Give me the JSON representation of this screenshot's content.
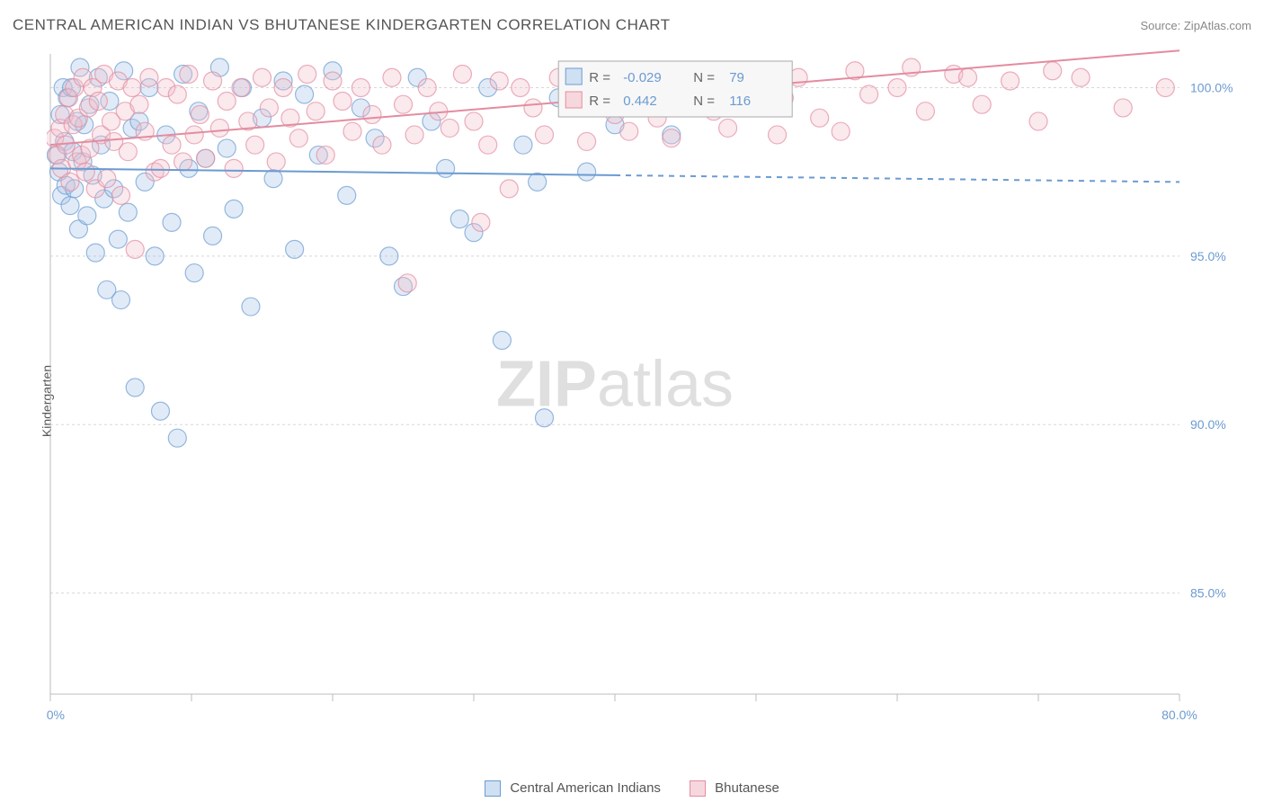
{
  "title": "CENTRAL AMERICAN INDIAN VS BHUTANESE KINDERGARTEN CORRELATION CHART",
  "source": {
    "prefix": "Source: ",
    "name": "ZipAtlas.com"
  },
  "y_axis": {
    "title": "Kindergarten"
  },
  "watermark": {
    "boldpart": "ZIP",
    "rest": "atlas"
  },
  "chart": {
    "type": "scatter",
    "background_color": "#ffffff",
    "grid_color": "#d8d8d8",
    "axis_line_color": "#bcbcbc",
    "xlim": [
      0,
      80
    ],
    "ylim": [
      82,
      101
    ],
    "y_gridlines": [
      85,
      90,
      95,
      100
    ],
    "y_tick_labels": [
      "85.0%",
      "90.0%",
      "95.0%",
      "100.0%"
    ],
    "x_ticks": [
      0,
      10,
      20,
      30,
      40,
      50,
      60,
      70,
      80
    ],
    "x_tick_labels": [
      "0.0%",
      "",
      "",
      "",
      "",
      "",
      "",
      "",
      "80.0%"
    ],
    "marker_radius": 10,
    "marker_fill_opacity": 0.35,
    "marker_stroke_opacity": 0.7,
    "marker_stroke_width": 1.2,
    "trend_line_width": 2,
    "series": [
      {
        "key": "cai",
        "label": "Central American Indians",
        "color": "#6b9bd1",
        "fill": "#a9c7e8",
        "swatch_fill": "#cfe0f2",
        "swatch_border": "#6b9bd1",
        "R": "-0.029",
        "N": "79",
        "trend": {
          "x1": 0,
          "y1": 97.6,
          "x2": 40,
          "y2": 97.4,
          "ext_x2": 80,
          "ext_y2": 97.2,
          "dashed_ext": true
        },
        "points": [
          [
            0.4,
            98.0
          ],
          [
            0.6,
            97.5
          ],
          [
            0.7,
            99.2
          ],
          [
            0.8,
            96.8
          ],
          [
            0.9,
            100.0
          ],
          [
            1.0,
            98.4
          ],
          [
            1.1,
            97.1
          ],
          [
            1.2,
            99.7
          ],
          [
            1.4,
            96.5
          ],
          [
            1.5,
            100.0
          ],
          [
            1.6,
            98.1
          ],
          [
            1.7,
            97.0
          ],
          [
            1.9,
            99.0
          ],
          [
            2.0,
            95.8
          ],
          [
            2.1,
            100.6
          ],
          [
            2.3,
            97.8
          ],
          [
            2.4,
            98.9
          ],
          [
            2.6,
            96.2
          ],
          [
            2.8,
            99.5
          ],
          [
            3.0,
            97.4
          ],
          [
            3.2,
            95.1
          ],
          [
            3.4,
            100.3
          ],
          [
            3.6,
            98.3
          ],
          [
            3.8,
            96.7
          ],
          [
            4.0,
            94.0
          ],
          [
            4.2,
            99.6
          ],
          [
            4.5,
            97.0
          ],
          [
            4.8,
            95.5
          ],
          [
            5.0,
            93.7
          ],
          [
            5.2,
            100.5
          ],
          [
            5.5,
            96.3
          ],
          [
            5.8,
            98.8
          ],
          [
            6.0,
            91.1
          ],
          [
            6.3,
            99.0
          ],
          [
            6.7,
            97.2
          ],
          [
            7.0,
            100.0
          ],
          [
            7.4,
            95.0
          ],
          [
            7.8,
            90.4
          ],
          [
            8.2,
            98.6
          ],
          [
            8.6,
            96.0
          ],
          [
            9.0,
            89.6
          ],
          [
            9.4,
            100.4
          ],
          [
            9.8,
            97.6
          ],
          [
            10.2,
            94.5
          ],
          [
            10.5,
            99.3
          ],
          [
            11.0,
            97.9
          ],
          [
            11.5,
            95.6
          ],
          [
            12.0,
            100.6
          ],
          [
            12.5,
            98.2
          ],
          [
            13.0,
            96.4
          ],
          [
            13.6,
            100.0
          ],
          [
            14.2,
            93.5
          ],
          [
            15.0,
            99.1
          ],
          [
            15.8,
            97.3
          ],
          [
            16.5,
            100.2
          ],
          [
            17.3,
            95.2
          ],
          [
            18.0,
            99.8
          ],
          [
            19.0,
            98.0
          ],
          [
            20.0,
            100.5
          ],
          [
            21.0,
            96.8
          ],
          [
            22.0,
            99.4
          ],
          [
            23.0,
            98.5
          ],
          [
            24.0,
            95.0
          ],
          [
            25.0,
            94.1
          ],
          [
            26.0,
            100.3
          ],
          [
            27.0,
            99.0
          ],
          [
            28.0,
            97.6
          ],
          [
            29.0,
            96.1
          ],
          [
            30.0,
            95.7
          ],
          [
            31.0,
            100.0
          ],
          [
            32.0,
            92.5
          ],
          [
            33.5,
            98.3
          ],
          [
            34.5,
            97.2
          ],
          [
            35.0,
            90.2
          ],
          [
            36.0,
            99.7
          ],
          [
            38.0,
            97.5
          ],
          [
            40.0,
            98.9
          ],
          [
            42.0,
            99.6
          ],
          [
            44.0,
            98.6
          ]
        ]
      },
      {
        "key": "bhu",
        "label": "Bhutanese",
        "color": "#e38ca0",
        "fill": "#f2bfca",
        "swatch_fill": "#f7d7de",
        "swatch_border": "#e38ca0",
        "R": "0.442",
        "N": "116",
        "trend": {
          "x1": 0,
          "y1": 98.3,
          "x2": 60,
          "y2": 100.4,
          "ext_x2": 80,
          "ext_y2": 101.1,
          "dashed_ext": false
        },
        "points": [
          [
            0.3,
            98.5
          ],
          [
            0.5,
            98.0
          ],
          [
            0.7,
            98.8
          ],
          [
            0.8,
            97.6
          ],
          [
            1.0,
            99.2
          ],
          [
            1.1,
            98.3
          ],
          [
            1.3,
            99.7
          ],
          [
            1.4,
            97.2
          ],
          [
            1.6,
            98.9
          ],
          [
            1.7,
            100.0
          ],
          [
            1.9,
            97.8
          ],
          [
            2.0,
            99.1
          ],
          [
            2.2,
            98.0
          ],
          [
            2.3,
            100.3
          ],
          [
            2.5,
            97.5
          ],
          [
            2.7,
            99.4
          ],
          [
            2.8,
            98.2
          ],
          [
            3.0,
            100.0
          ],
          [
            3.2,
            97.0
          ],
          [
            3.4,
            99.6
          ],
          [
            3.6,
            98.6
          ],
          [
            3.8,
            100.4
          ],
          [
            4.0,
            97.3
          ],
          [
            4.3,
            99.0
          ],
          [
            4.5,
            98.4
          ],
          [
            4.8,
            100.2
          ],
          [
            5.0,
            96.8
          ],
          [
            5.3,
            99.3
          ],
          [
            5.5,
            98.1
          ],
          [
            5.8,
            100.0
          ],
          [
            6.0,
            95.2
          ],
          [
            6.3,
            99.5
          ],
          [
            6.7,
            98.7
          ],
          [
            7.0,
            100.3
          ],
          [
            7.4,
            97.5
          ],
          [
            7.8,
            97.6
          ],
          [
            8.2,
            100.0
          ],
          [
            8.6,
            98.3
          ],
          [
            9.0,
            99.8
          ],
          [
            9.4,
            97.8
          ],
          [
            9.8,
            100.4
          ],
          [
            10.2,
            98.6
          ],
          [
            10.6,
            99.2
          ],
          [
            11.0,
            97.9
          ],
          [
            11.5,
            100.2
          ],
          [
            12.0,
            98.8
          ],
          [
            12.5,
            99.6
          ],
          [
            13.0,
            97.6
          ],
          [
            13.5,
            100.0
          ],
          [
            14.0,
            99.0
          ],
          [
            14.5,
            98.3
          ],
          [
            15.0,
            100.3
          ],
          [
            15.5,
            99.4
          ],
          [
            16.0,
            97.8
          ],
          [
            16.5,
            100.0
          ],
          [
            17.0,
            99.1
          ],
          [
            17.6,
            98.5
          ],
          [
            18.2,
            100.4
          ],
          [
            18.8,
            99.3
          ],
          [
            19.5,
            98.0
          ],
          [
            20.0,
            100.2
          ],
          [
            20.7,
            99.6
          ],
          [
            21.4,
            98.7
          ],
          [
            22.0,
            100.0
          ],
          [
            22.8,
            99.2
          ],
          [
            23.5,
            98.3
          ],
          [
            24.2,
            100.3
          ],
          [
            25.0,
            99.5
          ],
          [
            25.3,
            94.2
          ],
          [
            25.8,
            98.6
          ],
          [
            26.7,
            100.0
          ],
          [
            27.5,
            99.3
          ],
          [
            28.3,
            98.8
          ],
          [
            29.2,
            100.4
          ],
          [
            30.0,
            99.0
          ],
          [
            30.5,
            96.0
          ],
          [
            31.0,
            98.3
          ],
          [
            31.8,
            100.2
          ],
          [
            32.5,
            97.0
          ],
          [
            33.3,
            100.0
          ],
          [
            34.2,
            99.4
          ],
          [
            35.0,
            98.6
          ],
          [
            36.0,
            100.3
          ],
          [
            37.0,
            99.5
          ],
          [
            38.0,
            98.4
          ],
          [
            39.0,
            100.0
          ],
          [
            40.0,
            99.2
          ],
          [
            41.0,
            98.7
          ],
          [
            42.0,
            100.4
          ],
          [
            43.0,
            99.1
          ],
          [
            44.0,
            98.5
          ],
          [
            45.0,
            99.6
          ],
          [
            46.0,
            100.2
          ],
          [
            47.0,
            99.3
          ],
          [
            48.0,
            98.8
          ],
          [
            49.0,
            100.0
          ],
          [
            50.0,
            99.4
          ],
          [
            51.5,
            98.6
          ],
          [
            53.0,
            100.3
          ],
          [
            54.5,
            99.1
          ],
          [
            56.0,
            98.7
          ],
          [
            58.0,
            99.8
          ],
          [
            60.0,
            100.0
          ],
          [
            62.0,
            99.3
          ],
          [
            64.0,
            100.4
          ],
          [
            66.0,
            99.5
          ],
          [
            68.0,
            100.2
          ],
          [
            70.0,
            99.0
          ],
          [
            73.0,
            100.3
          ],
          [
            76.0,
            99.4
          ],
          [
            79.0,
            100.0
          ],
          [
            52.0,
            99.7
          ],
          [
            57.0,
            100.5
          ],
          [
            61.0,
            100.6
          ],
          [
            65.0,
            100.3
          ],
          [
            71.0,
            100.5
          ]
        ]
      }
    ],
    "stats_box": {
      "bg": "#f7f7f7",
      "border": "#aaaaaa",
      "r_label": "R =",
      "n_label": "N =",
      "label_color": "#666666",
      "value_color": "#6b9bd1"
    }
  },
  "legend_bottom": [
    {
      "swatch_fill": "#cfe0f2",
      "swatch_border": "#6b9bd1",
      "text": "Central American Indians"
    },
    {
      "swatch_fill": "#f7d7de",
      "swatch_border": "#e38ca0",
      "text": "Bhutanese"
    }
  ]
}
